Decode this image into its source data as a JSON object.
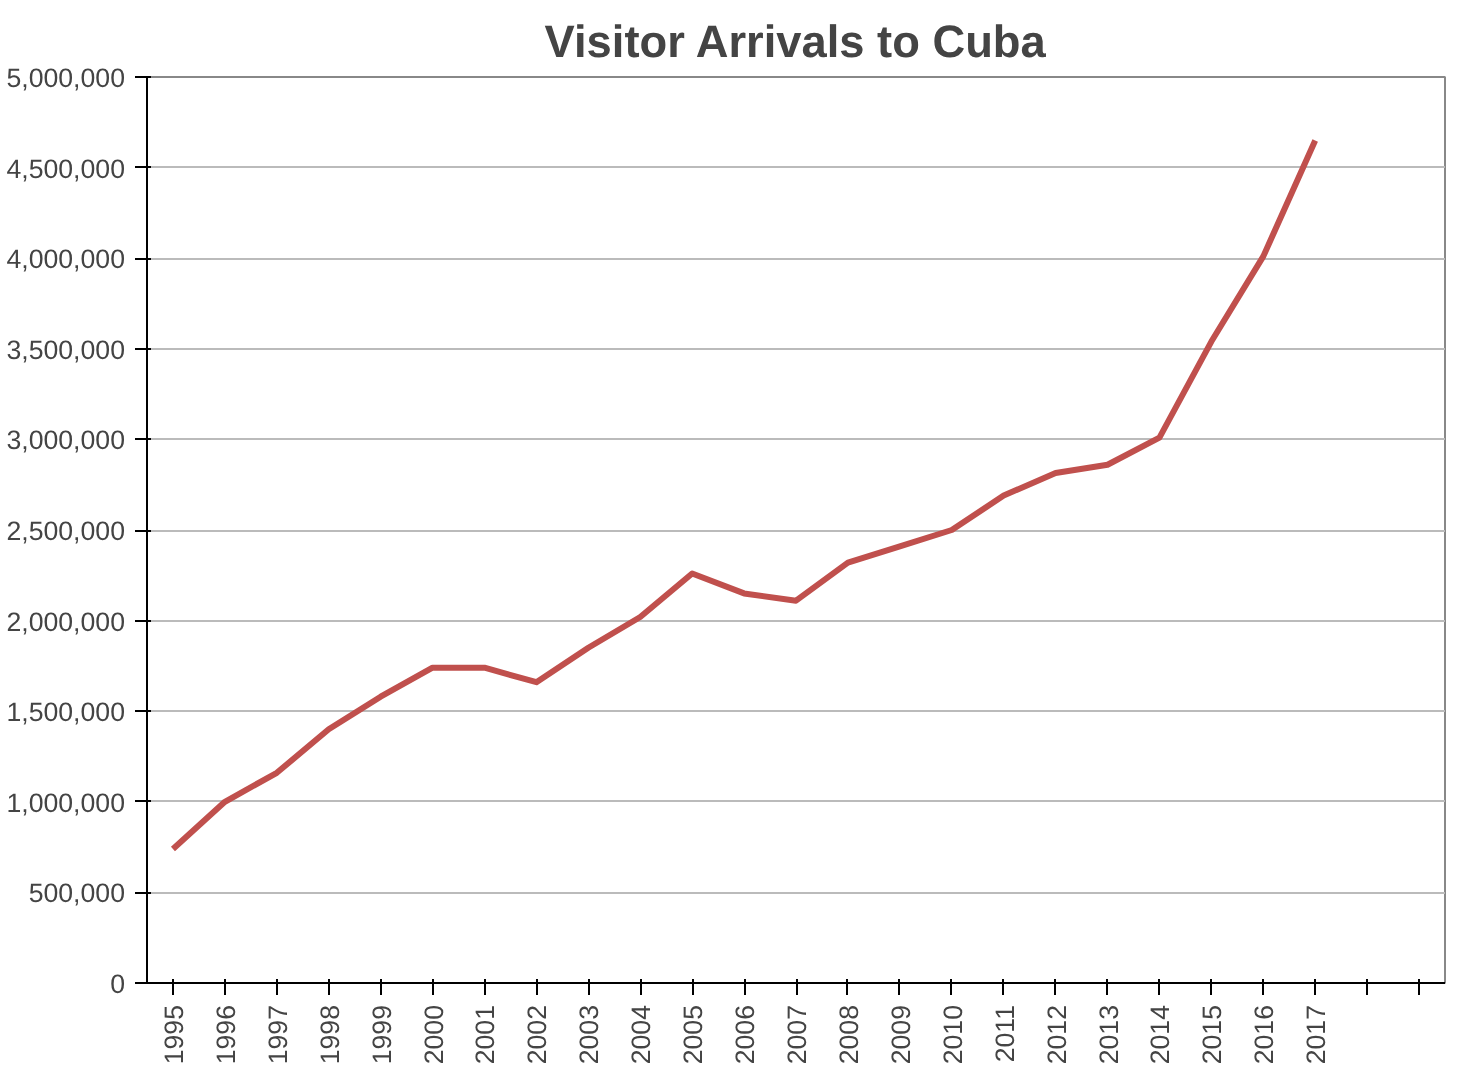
{
  "chart_data": {
    "type": "line",
    "title": "Visitor Arrivals to Cuba",
    "categories": [
      "1995",
      "1996",
      "1997",
      "1998",
      "1999",
      "2000",
      "2001",
      "2002",
      "2003",
      "2004",
      "2005",
      "2006",
      "2007",
      "2008",
      "2009",
      "2010",
      "2011",
      "2012",
      "2013",
      "2014",
      "2015",
      "2016",
      "2017",
      null,
      null
    ],
    "series": [
      {
        "color": "#c0504d",
        "values": [
          740000,
          1000000,
          1160000,
          1400000,
          1580000,
          1740000,
          1740000,
          1660000,
          1850000,
          2020000,
          2260000,
          2150000,
          2110000,
          2320000,
          2410000,
          2500000,
          2690000,
          2815000,
          2860000,
          3010000,
          3540000,
          4010000,
          4650000,
          null,
          null
        ]
      }
    ],
    "ylim": [
      0,
      5000000
    ],
    "yticks": [
      {
        "value": 0,
        "label": "0"
      },
      {
        "value": 500000,
        "label": "500,000"
      },
      {
        "value": 1000000,
        "label": "1,000,000"
      },
      {
        "value": 1500000,
        "label": "1,500,000"
      },
      {
        "value": 2000000,
        "label": "2,000,000"
      },
      {
        "value": 2500000,
        "label": "2,500,000"
      },
      {
        "value": 3000000,
        "label": "3,000,000"
      },
      {
        "value": 3500000,
        "label": "3,500,000"
      },
      {
        "value": 4000000,
        "label": "4,000,000"
      },
      {
        "value": 4500000,
        "label": "4,500,000"
      },
      {
        "value": 5000000,
        "label": "5,000,000"
      }
    ],
    "grid": "y",
    "marker": "none",
    "line_style": "solid"
  }
}
